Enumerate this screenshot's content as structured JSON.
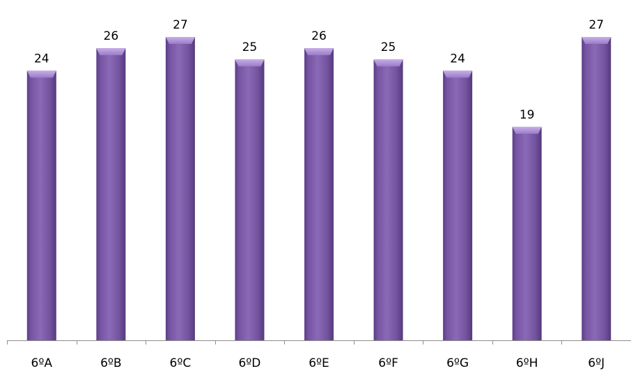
{
  "chart_data": {
    "type": "bar",
    "categories": [
      "6ºA",
      "6ºB",
      "6ºC",
      "6ºD",
      "6ºE",
      "6ºF",
      "6ºG",
      "6ºH",
      "6ºJ"
    ],
    "values": [
      24,
      26,
      27,
      25,
      26,
      25,
      24,
      19,
      27
    ],
    "title": "",
    "xlabel": "",
    "ylabel": "",
    "ylim": [
      0,
      27
    ],
    "grid": false,
    "legend": "none",
    "data_labels": true,
    "bar_color": "#8061A8"
  }
}
